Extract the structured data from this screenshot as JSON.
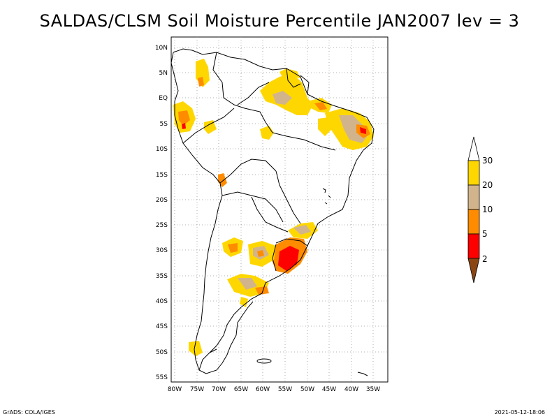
{
  "title": "SALDAS/CLSM Soil Moisture Percentile JAN2007 lev = 3",
  "axes": {
    "lat_labels": [
      "10N",
      "5N",
      "EQ",
      "5S",
      "10S",
      "15S",
      "20S",
      "25S",
      "30S",
      "35S",
      "40S",
      "45S",
      "50S",
      "55S"
    ],
    "lon_labels": [
      "80W",
      "75W",
      "70W",
      "65W",
      "60W",
      "55W",
      "50W",
      "45W",
      "40W",
      "35W"
    ]
  },
  "colorbar": {
    "labels": [
      "30",
      "20",
      "10",
      "5",
      "2"
    ],
    "colors": {
      "above_30": "#ffffff",
      "20_30": "#ffd700",
      "10_20": "#d2b48c",
      "5_10": "#ff8c00",
      "2_5": "#ff0000",
      "below_2": "#8b4513"
    }
  },
  "footer": {
    "left": "GrADS: COLA/IGES",
    "right": "2021-05-12-18:06"
  }
}
